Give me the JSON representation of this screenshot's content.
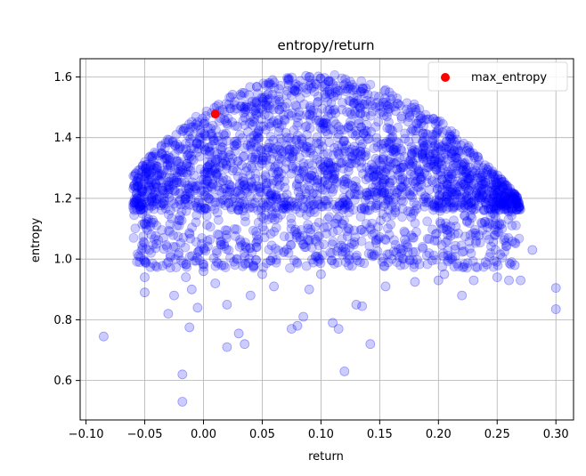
{
  "chart_data": {
    "type": "scatter",
    "title": "entropy/return",
    "xlabel": "return",
    "ylabel": "entropy",
    "xlim": [
      -0.105,
      0.315
    ],
    "ylim": [
      0.47,
      1.66
    ],
    "xticks": [
      -0.1,
      -0.05,
      0.0,
      0.05,
      0.1,
      0.15,
      0.2,
      0.25,
      0.3
    ],
    "xtick_labels": [
      "−0.10",
      "−0.05",
      "0.00",
      "0.05",
      "0.10",
      "0.15",
      "0.20",
      "0.25",
      "0.30"
    ],
    "yticks": [
      0.6,
      0.8,
      1.0,
      1.2,
      1.4,
      1.6
    ],
    "ytick_labels": [
      "0.6",
      "0.8",
      "1.0",
      "1.2",
      "1.4",
      "1.6"
    ],
    "grid": true,
    "legend": {
      "position": "top-right",
      "entries": [
        {
          "label": "max_entropy",
          "color": "#ff0000"
        }
      ]
    },
    "series": [
      {
        "color": "#0000ff",
        "opacity": 0.2,
        "approx_envelope": {
          "x_center": 0.095,
          "top_y": 1.61,
          "x_extent": [
            -0.06,
            0.27
          ],
          "dense_lower_y": 1.19
        },
        "points": [
          {
            "x": -0.085,
            "y": 0.745
          },
          {
            "x": -0.018,
            "y": 0.62
          },
          {
            "x": -0.018,
            "y": 0.53
          },
          {
            "x": 0.02,
            "y": 0.71
          },
          {
            "x": 0.03,
            "y": 0.755
          },
          {
            "x": 0.035,
            "y": 0.72
          },
          {
            "x": 0.12,
            "y": 0.63
          },
          {
            "x": 0.142,
            "y": 0.72
          },
          {
            "x": 0.115,
            "y": 0.77
          },
          {
            "x": 0.08,
            "y": 0.78
          },
          {
            "x": 0.085,
            "y": 0.81
          },
          {
            "x": 0.075,
            "y": 0.77
          },
          {
            "x": 0.11,
            "y": 0.79
          },
          {
            "x": -0.03,
            "y": 0.82
          },
          {
            "x": -0.012,
            "y": 0.775
          },
          {
            "x": 0.3,
            "y": 0.905
          },
          {
            "x": 0.3,
            "y": 0.835
          },
          {
            "x": 0.26,
            "y": 0.93
          },
          {
            "x": 0.28,
            "y": 1.03
          },
          {
            "x": 0.25,
            "y": 0.94
          },
          {
            "x": -0.055,
            "y": 1.01
          },
          {
            "x": -0.05,
            "y": 0.94
          },
          {
            "x": -0.05,
            "y": 0.89
          },
          {
            "x": -0.04,
            "y": 1.05
          },
          {
            "x": -0.03,
            "y": 0.99
          },
          {
            "x": -0.025,
            "y": 0.88
          },
          {
            "x": -0.015,
            "y": 0.94
          },
          {
            "x": -0.01,
            "y": 0.9
          },
          {
            "x": -0.005,
            "y": 0.84
          },
          {
            "x": 0.0,
            "y": 0.96
          },
          {
            "x": 0.01,
            "y": 0.92
          },
          {
            "x": 0.02,
            "y": 0.85
          },
          {
            "x": 0.04,
            "y": 0.88
          },
          {
            "x": 0.05,
            "y": 0.95
          },
          {
            "x": 0.06,
            "y": 0.91
          },
          {
            "x": 0.09,
            "y": 0.9
          },
          {
            "x": 0.1,
            "y": 0.95
          },
          {
            "x": 0.13,
            "y": 0.85
          },
          {
            "x": 0.135,
            "y": 0.845
          },
          {
            "x": 0.155,
            "y": 0.91
          },
          {
            "x": 0.18,
            "y": 0.925
          },
          {
            "x": 0.2,
            "y": 0.93
          },
          {
            "x": 0.205,
            "y": 0.95
          },
          {
            "x": 0.22,
            "y": 0.88
          },
          {
            "x": 0.23,
            "y": 0.93
          },
          {
            "x": 0.24,
            "y": 0.99
          },
          {
            "x": 0.265,
            "y": 0.98
          },
          {
            "x": 0.27,
            "y": 0.93
          }
        ]
      },
      {
        "name": "max_entropy",
        "color": "#ff0000",
        "opacity": 1.0,
        "points": [
          {
            "x": 0.01,
            "y": 1.478
          }
        ]
      }
    ]
  }
}
